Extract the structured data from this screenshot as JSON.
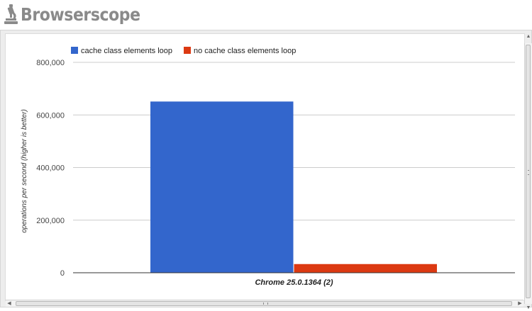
{
  "app": {
    "logo_text": "Browserscope",
    "logo_icon": "microscope-icon"
  },
  "colors": {
    "series_1": "#3366cc",
    "series_2": "#dc3912",
    "logo_gray": "#8a8a8a",
    "gridline": "#cccccc",
    "baseline": "#333333"
  },
  "chart_data": {
    "type": "bar",
    "categories": [
      "Chrome 25.0.1364 (2)"
    ],
    "series": [
      {
        "name": "cache class elements loop",
        "values": [
          651000
        ]
      },
      {
        "name": "no cache class elements loop",
        "values": [
          33000
        ]
      }
    ],
    "xlabel": "",
    "ylabel": "operations per second (higher is better)",
    "ylim": [
      0,
      800000
    ],
    "yticks": [
      0,
      200000,
      400000,
      600000,
      800000
    ],
    "ytick_labels": [
      "0",
      "200,000",
      "400,000",
      "600,000",
      "800,000"
    ],
    "grid": true,
    "legend_position": "top-left"
  }
}
